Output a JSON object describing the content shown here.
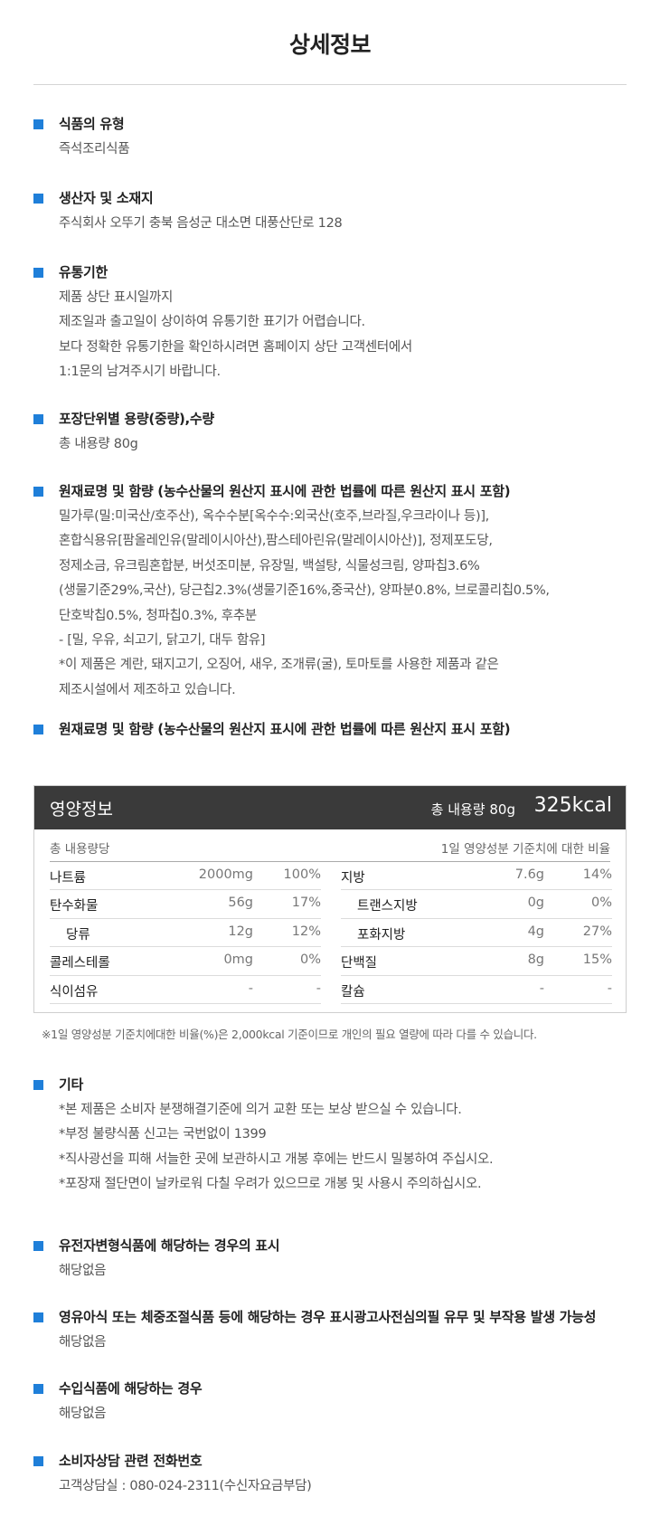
{
  "page_title": "상세정보",
  "accent_color": "#1f7fd9",
  "sections_top": [
    {
      "title": "식품의 유형",
      "lines": [
        "즉석조리식품"
      ]
    },
    {
      "title": "생산자 및 소재지",
      "lines": [
        "주식회사 오뚜기  충북 음성군 대소면 대풍산단로 128"
      ]
    },
    {
      "title": "유통기한",
      "lines": [
        "제품 상단 표시일까지",
        "제조일과 출고일이 상이하여 유통기한 표기가 어렵습니다.",
        "보다 정확한 유통기한을 확인하시려면 홈페이지 상단 고객센터에서",
        "1:1문의 남겨주시기 바랍니다."
      ]
    },
    {
      "title": "포장단위별 용량(중량),수량",
      "lines": [
        "총 내용량 80g"
      ]
    },
    {
      "title": "원재료명 및 함량 (농수산물의 원산지 표시에 관한 법률에 따른 원산지 표시 포함)",
      "lines": [
        "밀가루(밀:미국산/호주산), 옥수수분[옥수수:외국산(호주,브라질,우크라이나 등)],",
        "혼합식용유[팜올레인유(말레이시아산),팜스테아린유(말레이시아산)], 정제포도당,",
        "정제소금, 유크림혼합분, 버섯조미분, 유장밀, 백설탕, 식물성크림, 양파칩3.6%",
        "(생물기준29%,국산), 당근칩2.3%(생물기준16%,중국산), 양파분0.8%, 브로콜리칩0.5%,",
        "단호박칩0.5%, 청파칩0.3%, 후추분",
        "- [밀, 우유, 쇠고기, 닭고기, 대두 함유]",
        "*이 제품은 계란, 돼지고기, 오징어, 새우, 조개류(굴), 토마토를 사용한 제품과 같은",
        "제조시설에서 제조하고 있습니다."
      ]
    },
    {
      "title": "원재료명 및 함량 (농수산물의 원산지 표시에 관한 법률에 따른 원산지 표시 포함)",
      "lines": []
    }
  ],
  "nutrition": {
    "title": "영양정보",
    "total_label": "총 내용량 80g",
    "kcal": "325kcal",
    "sub_left": "총 내용량당",
    "sub_right": "1일 영양성분 기준치에 대한 비율",
    "left_rows": [
      {
        "name": "나트륨",
        "amount": "2000mg",
        "pct": "100%",
        "sub": false
      },
      {
        "name": "탄수화물",
        "amount": "56g",
        "pct": "17%",
        "sub": false
      },
      {
        "name": "당류",
        "amount": "12g",
        "pct": "12%",
        "sub": true
      },
      {
        "name": "콜레스테롤",
        "amount": "0mg",
        "pct": "0%",
        "sub": false
      },
      {
        "name": "식이섬유",
        "amount": "-",
        "pct": "-",
        "sub": false
      }
    ],
    "right_rows": [
      {
        "name": "지방",
        "amount": "7.6g",
        "pct": "14%",
        "sub": false
      },
      {
        "name": "트랜스지방",
        "amount": "0g",
        "pct": "0%",
        "sub": true
      },
      {
        "name": "포화지방",
        "amount": "4g",
        "pct": "27%",
        "sub": true
      },
      {
        "name": "단백질",
        "amount": "8g",
        "pct": "15%",
        "sub": false
      },
      {
        "name": "칼슘",
        "amount": "-",
        "pct": "-",
        "sub": false
      }
    ],
    "footnote": "※1일 영양성분 기준치에대한 비율(%)은 2,000kcal 기준이므로 개인의 필요 열량에 따라 다를 수 있습니다."
  },
  "sections_bottom": [
    {
      "title": "기타",
      "lines": [
        "*본 제품은 소비자 분쟁해결기준에 의거 교환 또는 보상 받으실 수 있습니다.",
        "*부정   불량식품 신고는 국번없이 1399",
        "*직사광선을 피해 서늘한 곳에 보관하시고 개봉 후에는 반드시 밀봉하여 주십시오.",
        "*포장재 절단면이 날카로워 다칠 우려가 있으므로 개봉 및 사용시 주의하십시오."
      ]
    },
    {
      "title": "유전자변형식품에 해당하는 경우의 표시",
      "lines": [
        "해당없음"
      ]
    },
    {
      "title": "영유아식 또는 체중조절식품 등에 해당하는 경우 표시광고사전심의필 유무 및 부작용 발생 가능성",
      "lines": [
        "해당없음"
      ]
    },
    {
      "title": "수입식품에 해당하는 경우",
      "lines": [
        "해당없음"
      ]
    },
    {
      "title": "소비자상담 관련 전화번호",
      "lines": [
        "고객상담실 : 080-024-2311(수신자요금부담)"
      ]
    }
  ]
}
